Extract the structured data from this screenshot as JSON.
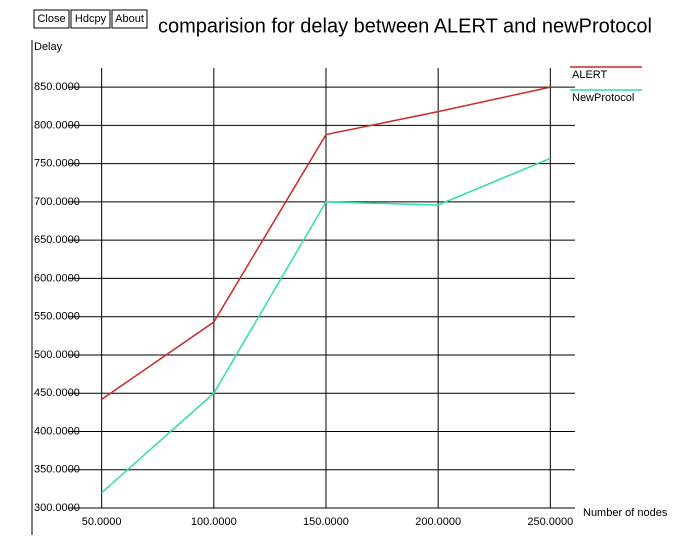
{
  "buttons": [
    "Close",
    "Hdcpy",
    "About"
  ],
  "chart_data": {
    "type": "line",
    "title": "comparision for delay between ALERT and newProtocol",
    "y_label": "Delay",
    "x_label": "Number of nodes",
    "x": [
      50,
      100,
      150,
      200,
      250
    ],
    "series": [
      {
        "name": "ALERT",
        "color": "#cc2a2a",
        "values": [
          442,
          543,
          788,
          818,
          850
        ]
      },
      {
        "name": "NewProtocol",
        "color": "#2ee0a0",
        "values": [
          320,
          450,
          700,
          696,
          757
        ]
      }
    ],
    "xlim": [
      35,
      261
    ],
    "ylim": [
      300,
      875
    ],
    "xticks": [
      {
        "value": 50,
        "label": "50.0000"
      },
      {
        "value": 100,
        "label": "100.0000"
      },
      {
        "value": 150,
        "label": "150.0000"
      },
      {
        "value": 200,
        "label": "200.0000"
      },
      {
        "value": 250,
        "label": "250.0000"
      }
    ],
    "yticks": [
      {
        "value": 300,
        "label": "300.0000"
      },
      {
        "value": 350,
        "label": "350.0000"
      },
      {
        "value": 400,
        "label": "400.0000"
      },
      {
        "value": 450,
        "label": "450.0000"
      },
      {
        "value": 500,
        "label": "500.0000"
      },
      {
        "value": 550,
        "label": "550.0000"
      },
      {
        "value": 600,
        "label": "600.0000"
      },
      {
        "value": 650,
        "label": "650.0000"
      },
      {
        "value": 700,
        "label": "700.0000"
      },
      {
        "value": 750,
        "label": "750.0000"
      },
      {
        "value": 800,
        "label": "800.0000"
      },
      {
        "value": 850,
        "label": "850.0000"
      }
    ],
    "grid": true,
    "legend": "top-right"
  }
}
